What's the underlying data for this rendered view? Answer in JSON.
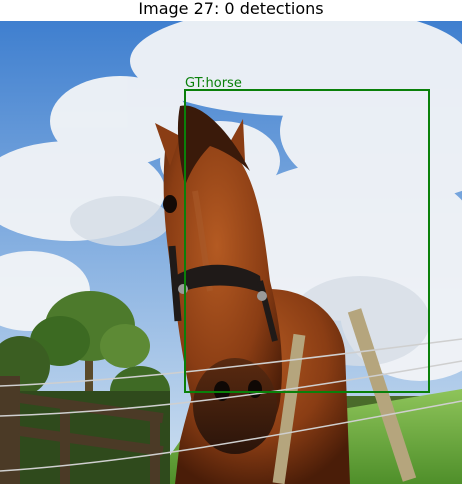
{
  "figure": {
    "title": "Image 27: 0 detections"
  },
  "annotations": {
    "ground_truth": [
      {
        "label": "GT:horse",
        "color": "#0a800a"
      }
    ]
  }
}
